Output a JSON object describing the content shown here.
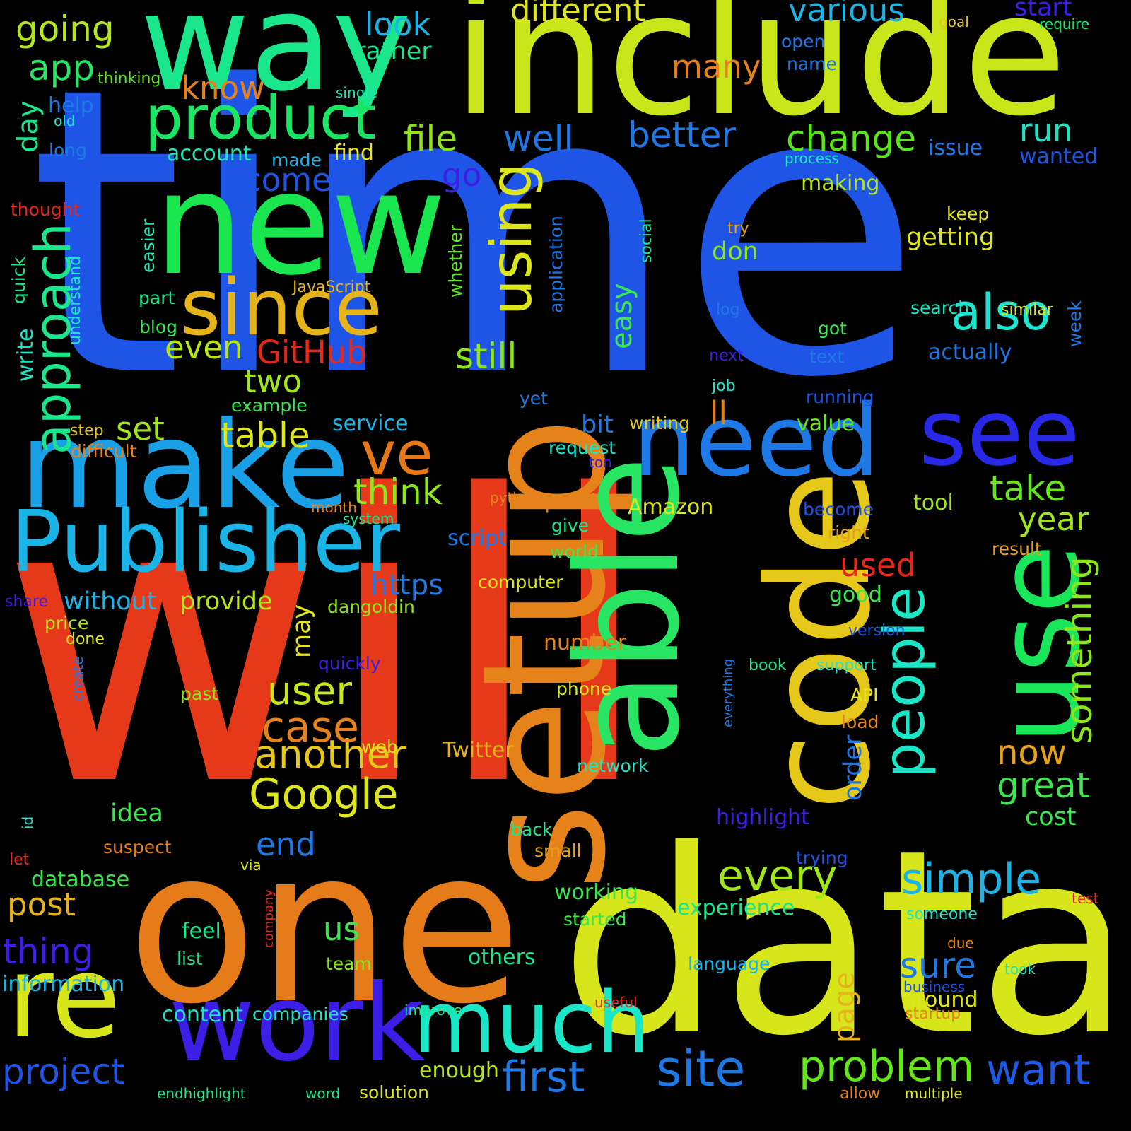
{
  "words": [
    {
      "text": "time",
      "color": "#1e55e6",
      "rot": false
    },
    {
      "text": "will",
      "color": "#e6391a",
      "rot": false
    },
    {
      "text": "one",
      "color": "#e67b1a",
      "rot": false
    },
    {
      "text": "data",
      "color": "#d6e61a",
      "rot": false
    },
    {
      "text": "include",
      "color": "#c8e61a",
      "rot": false
    },
    {
      "text": "way",
      "color": "#1ae68c",
      "rot": false
    },
    {
      "text": "new",
      "color": "#1ae650",
      "rot": false
    },
    {
      "text": "make",
      "color": "#1aa0e6",
      "rot": false
    },
    {
      "text": "Publisher",
      "color": "#1ab4e6",
      "rot": false
    },
    {
      "text": "setup",
      "color": "#e6821a",
      "rot": true
    },
    {
      "text": "able",
      "color": "#28e664",
      "rot": true
    },
    {
      "text": "code",
      "color": "#e6c81a",
      "rot": true
    },
    {
      "text": "use",
      "color": "#1ae65a",
      "rot": true
    },
    {
      "text": "need",
      "color": "#1e78e6",
      "rot": false
    },
    {
      "text": "see",
      "color": "#2828e6",
      "rot": false
    },
    {
      "text": "re",
      "color": "#d6e61a",
      "rot": false
    },
    {
      "text": "work",
      "color": "#3c1ee6",
      "rot": false
    },
    {
      "text": "much",
      "color": "#1ae6c8",
      "rot": false
    },
    {
      "text": "since",
      "color": "#e6b41a",
      "rot": false
    },
    {
      "text": "product",
      "color": "#1ae664",
      "rot": false
    },
    {
      "text": "ve",
      "color": "#e6781a",
      "rot": false
    },
    {
      "text": "using",
      "color": "#dce61a",
      "rot": true
    },
    {
      "text": "people",
      "color": "#1ae6c8",
      "rot": true
    },
    {
      "text": "approach",
      "color": "#1ae68c",
      "rot": true
    },
    {
      "text": "also",
      "color": "#1ae6d2",
      "rot": false
    },
    {
      "text": "site",
      "color": "#1e78e6",
      "rot": false
    },
    {
      "text": "first",
      "color": "#1e78e6",
      "rot": false
    },
    {
      "text": "problem",
      "color": "#64e61a",
      "rot": false
    },
    {
      "text": "want",
      "color": "#1e5ae6",
      "rot": false
    },
    {
      "text": "simple",
      "color": "#1ab4e6",
      "rot": false
    },
    {
      "text": "every",
      "color": "#a0e61a",
      "rot": false
    },
    {
      "text": "another",
      "color": "#e6c81a",
      "rot": false
    },
    {
      "text": "Google",
      "color": "#dce61a",
      "rot": false
    },
    {
      "text": "case",
      "color": "#e6821a",
      "rot": false
    },
    {
      "text": "user",
      "color": "#c8e61a",
      "rot": false
    },
    {
      "text": "something",
      "color": "#8ce61a",
      "rot": true
    },
    {
      "text": "great",
      "color": "#3ce650",
      "rot": false
    },
    {
      "text": "now",
      "color": "#e6a01a",
      "rot": false
    },
    {
      "text": "take",
      "color": "#64e61a",
      "rot": false
    },
    {
      "text": "year",
      "color": "#a0e61a",
      "rot": false
    },
    {
      "text": "different",
      "color": "#dce61a",
      "rot": false
    },
    {
      "text": "various",
      "color": "#1ab4e6",
      "rot": false
    },
    {
      "text": "start",
      "color": "#3c1ee6",
      "rot": false
    },
    {
      "text": "goal",
      "color": "#e6c81a",
      "rot": false
    },
    {
      "text": "require",
      "color": "#1ae664",
      "rot": false
    },
    {
      "text": "open",
      "color": "#1e78e6",
      "rot": false
    },
    {
      "text": "name",
      "color": "#1e78e6",
      "rot": false
    },
    {
      "text": "look",
      "color": "#1ab4e6",
      "rot": false
    },
    {
      "text": "rather",
      "color": "#1ae68c",
      "rot": false
    },
    {
      "text": "going",
      "color": "#b4e61a",
      "rot": false
    },
    {
      "text": "app",
      "color": "#28e664",
      "rot": false
    },
    {
      "text": "thinking",
      "color": "#5ae61a",
      "rot": false
    },
    {
      "text": "single",
      "color": "#1ae6b4",
      "rot": false
    },
    {
      "text": "know",
      "color": "#e6821a",
      "rot": false
    },
    {
      "text": "many",
      "color": "#e6821a",
      "rot": false
    },
    {
      "text": "help",
      "color": "#1e78e6",
      "rot": false
    },
    {
      "text": "old",
      "color": "#1ae6c8",
      "rot": false
    },
    {
      "text": "day",
      "color": "#1ae68c",
      "rot": true
    },
    {
      "text": "long",
      "color": "#1e78e6",
      "rot": false
    },
    {
      "text": "account",
      "color": "#1ae6b4",
      "rot": false
    },
    {
      "text": "made",
      "color": "#1ab4e6",
      "rot": false
    },
    {
      "text": "find",
      "color": "#e6e61a",
      "rot": false
    },
    {
      "text": "file",
      "color": "#8ce61a",
      "rot": false
    },
    {
      "text": "well",
      "color": "#1e78e6",
      "rot": false
    },
    {
      "text": "better",
      "color": "#1e78e6",
      "rot": false
    },
    {
      "text": "change",
      "color": "#5ae61a",
      "rot": false
    },
    {
      "text": "run",
      "color": "#1ae6c8",
      "rot": false
    },
    {
      "text": "issue",
      "color": "#1e78e6",
      "rot": false
    },
    {
      "text": "wanted",
      "color": "#1e55e6",
      "rot": false
    },
    {
      "text": "process",
      "color": "#1ae6c8",
      "rot": false
    },
    {
      "text": "come",
      "color": "#1e55e6",
      "rot": false
    },
    {
      "text": "go",
      "color": "#3c1ee6",
      "rot": false
    },
    {
      "text": "making",
      "color": "#b4e61a",
      "rot": false
    },
    {
      "text": "thought",
      "color": "#e6281a",
      "rot": false
    },
    {
      "text": "keep",
      "color": "#e6e61a",
      "rot": false
    },
    {
      "text": "try",
      "color": "#e6a01a",
      "rot": false
    },
    {
      "text": "getting",
      "color": "#dce61a",
      "rot": false
    },
    {
      "text": "social",
      "color": "#1ae68c",
      "rot": true
    },
    {
      "text": "application",
      "color": "#1e78e6",
      "rot": true
    },
    {
      "text": "whether",
      "color": "#5ae61a",
      "rot": true
    },
    {
      "text": "easier",
      "color": "#1ae6b4",
      "rot": true
    },
    {
      "text": "don",
      "color": "#8ce61a",
      "rot": false
    },
    {
      "text": "quick",
      "color": "#1ae68c",
      "rot": true
    },
    {
      "text": "understand",
      "color": "#1ae6c8",
      "rot": true
    },
    {
      "text": "JavaScript",
      "color": "#e6b41a",
      "rot": false
    },
    {
      "text": "easy",
      "color": "#3ce650",
      "rot": true
    },
    {
      "text": "part",
      "color": "#1ae68c",
      "rot": false
    },
    {
      "text": "log",
      "color": "#1e78e6",
      "rot": false
    },
    {
      "text": "search",
      "color": "#1ae6c8",
      "rot": false
    },
    {
      "text": "similar",
      "color": "#dce61a",
      "rot": false
    },
    {
      "text": "week",
      "color": "#1e78e6",
      "rot": true
    },
    {
      "text": "blog",
      "color": "#3ce650",
      "rot": false
    },
    {
      "text": "even",
      "color": "#b4e61a",
      "rot": false
    },
    {
      "text": "GitHub",
      "color": "#e6281a",
      "rot": false
    },
    {
      "text": "still",
      "color": "#8ce61a",
      "rot": false
    },
    {
      "text": "got",
      "color": "#3ce650",
      "rot": false
    },
    {
      "text": "text",
      "color": "#1e78e6",
      "rot": false
    },
    {
      "text": "actually",
      "color": "#1e78e6",
      "rot": false
    },
    {
      "text": "next",
      "color": "#3c1ee6",
      "rot": false
    },
    {
      "text": "write",
      "color": "#1ae6c8",
      "rot": true
    },
    {
      "text": "two",
      "color": "#a0e61a",
      "rot": false
    },
    {
      "text": "job",
      "color": "#1ae6c8",
      "rot": false
    },
    {
      "text": "yet",
      "color": "#1e78e6",
      "rot": false
    },
    {
      "text": "running",
      "color": "#1e55e6",
      "rot": false
    },
    {
      "text": "example",
      "color": "#3ce650",
      "rot": false
    },
    {
      "text": "ll",
      "color": "#e6821a",
      "rot": false
    },
    {
      "text": "step",
      "color": "#e6c81a",
      "rot": false
    },
    {
      "text": "set",
      "color": "#a0e61a",
      "rot": false
    },
    {
      "text": "table",
      "color": "#dce61a",
      "rot": false
    },
    {
      "text": "service",
      "color": "#1ab4e6",
      "rot": false
    },
    {
      "text": "bit",
      "color": "#1e78e6",
      "rot": false
    },
    {
      "text": "writing",
      "color": "#e6c81a",
      "rot": false
    },
    {
      "text": "value",
      "color": "#64e61a",
      "rot": false
    },
    {
      "text": "difficult",
      "color": "#e6821a",
      "rot": false
    },
    {
      "text": "request",
      "color": "#1ae6c8",
      "rot": false
    },
    {
      "text": "ton",
      "color": "#3c1ee6",
      "rot": false
    },
    {
      "text": "think",
      "color": "#8ce61a",
      "rot": false
    },
    {
      "text": "month",
      "color": "#e6821a",
      "rot": false
    },
    {
      "text": "python",
      "color": "#e6821a",
      "rot": false
    },
    {
      "text": "point",
      "color": "#e6821a",
      "rot": false
    },
    {
      "text": "system",
      "color": "#1ae68c",
      "rot": false
    },
    {
      "text": "Amazon",
      "color": "#dce61a",
      "rot": false
    },
    {
      "text": "become",
      "color": "#1e55e6",
      "rot": false
    },
    {
      "text": "tool",
      "color": "#a0e61a",
      "rot": false
    },
    {
      "text": "give",
      "color": "#1ae68c",
      "rot": false
    },
    {
      "text": "right",
      "color": "#e6a01a",
      "rot": false
    },
    {
      "text": "script",
      "color": "#1e78e6",
      "rot": false
    },
    {
      "text": "world",
      "color": "#3ce650",
      "rot": false
    },
    {
      "text": "result",
      "color": "#e6a01a",
      "rot": false
    },
    {
      "text": "used",
      "color": "#e6281a",
      "rot": false
    },
    {
      "text": "https",
      "color": "#1e78e6",
      "rot": false
    },
    {
      "text": "computer",
      "color": "#dce61a",
      "rot": false
    },
    {
      "text": "without",
      "color": "#1ab4e6",
      "rot": false
    },
    {
      "text": "provide",
      "color": "#b4e61a",
      "rot": false
    },
    {
      "text": "share",
      "color": "#3c1ee6",
      "rot": false
    },
    {
      "text": "good",
      "color": "#3ce650",
      "rot": false
    },
    {
      "text": "dangoldin",
      "color": "#8ce61a",
      "rot": false
    },
    {
      "text": "may",
      "color": "#e6e61a",
      "rot": true
    },
    {
      "text": "price",
      "color": "#b4e61a",
      "rot": false
    },
    {
      "text": "done",
      "color": "#dce61a",
      "rot": false
    },
    {
      "text": "version",
      "color": "#1e55e6",
      "rot": false
    },
    {
      "text": "number",
      "color": "#e6821a",
      "rot": false
    },
    {
      "text": "quickly",
      "color": "#3c1ee6",
      "rot": false
    },
    {
      "text": "book",
      "color": "#1ae68c",
      "rot": false
    },
    {
      "text": "support",
      "color": "#1ae6c8",
      "rot": false
    },
    {
      "text": "create",
      "color": "#1e78e6",
      "rot": true
    },
    {
      "text": "everything",
      "color": "#1e78e6",
      "rot": true
    },
    {
      "text": "phone",
      "color": "#dce61a",
      "rot": false
    },
    {
      "text": "past",
      "color": "#8ce61a",
      "rot": false
    },
    {
      "text": "API",
      "color": "#e6e61a",
      "rot": false
    },
    {
      "text": "load",
      "color": "#e6821a",
      "rot": false
    },
    {
      "text": "order",
      "color": "#1e78e6",
      "rot": true
    },
    {
      "text": "web",
      "color": "#dce61a",
      "rot": false
    },
    {
      "text": "Twitter",
      "color": "#e6b41a",
      "rot": false
    },
    {
      "text": "network",
      "color": "#1ae6c8",
      "rot": false
    },
    {
      "text": "idea",
      "color": "#3ce650",
      "rot": false
    },
    {
      "text": "highlight",
      "color": "#3c1ee6",
      "rot": false
    },
    {
      "text": "cost",
      "color": "#3ce650",
      "rot": false
    },
    {
      "text": "id",
      "color": "#1ae6c8",
      "rot": true
    },
    {
      "text": "back",
      "color": "#1ae68c",
      "rot": false
    },
    {
      "text": "suspect",
      "color": "#e6821a",
      "rot": false
    },
    {
      "text": "end",
      "color": "#1e78e6",
      "rot": false
    },
    {
      "text": "small",
      "color": "#e6a01a",
      "rot": false
    },
    {
      "text": "let",
      "color": "#e6281a",
      "rot": false
    },
    {
      "text": "via",
      "color": "#dce61a",
      "rot": false
    },
    {
      "text": "trying",
      "color": "#1e55e6",
      "rot": false
    },
    {
      "text": "database",
      "color": "#3ce650",
      "rot": false
    },
    {
      "text": "working",
      "color": "#3ce650",
      "rot": false
    },
    {
      "text": "experience",
      "color": "#1ae68c",
      "rot": false
    },
    {
      "text": "test",
      "color": "#e6281a",
      "rot": false
    },
    {
      "text": "post",
      "color": "#e6b41a",
      "rot": false
    },
    {
      "text": "company",
      "color": "#e6281a",
      "rot": true
    },
    {
      "text": "started",
      "color": "#3ce650",
      "rot": false
    },
    {
      "text": "someone",
      "color": "#1ae6c8",
      "rot": false
    },
    {
      "text": "thing",
      "color": "#3c1ee6",
      "rot": false
    },
    {
      "text": "feel",
      "color": "#1ae68c",
      "rot": false
    },
    {
      "text": "us",
      "color": "#3ce650",
      "rot": false
    },
    {
      "text": "due",
      "color": "#e6821a",
      "rot": false
    },
    {
      "text": "list",
      "color": "#1ae68c",
      "rot": false
    },
    {
      "text": "team",
      "color": "#8ce61a",
      "rot": false
    },
    {
      "text": "others",
      "color": "#1ae68c",
      "rot": false
    },
    {
      "text": "language",
      "color": "#1ab4e6",
      "rot": false
    },
    {
      "text": "sure",
      "color": "#1e78e6",
      "rot": false
    },
    {
      "text": "took",
      "color": "#1ae6c8",
      "rot": false
    },
    {
      "text": "information",
      "color": "#1ab4e6",
      "rot": false
    },
    {
      "text": "page",
      "color": "#e6b41a",
      "rot": true
    },
    {
      "text": "business",
      "color": "#1e55e6",
      "rot": false
    },
    {
      "text": "around",
      "color": "#dce61a",
      "rot": false
    },
    {
      "text": "useful",
      "color": "#e6281a",
      "rot": false
    },
    {
      "text": "improve",
      "color": "#1ae68c",
      "rot": false
    },
    {
      "text": "startup",
      "color": "#e6821a",
      "rot": false
    },
    {
      "text": "content",
      "color": "#1ae6c8",
      "rot": false
    },
    {
      "text": "companies",
      "color": "#1ae6c8",
      "rot": false
    },
    {
      "text": "project",
      "color": "#1e55e6",
      "rot": false
    },
    {
      "text": "enough",
      "color": "#b4e61a",
      "rot": false
    },
    {
      "text": "endhighlight",
      "color": "#1ae68c",
      "rot": false
    },
    {
      "text": "word",
      "color": "#1ae68c",
      "rot": false
    },
    {
      "text": "solution",
      "color": "#dce61a",
      "rot": false
    },
    {
      "text": "allow",
      "color": "#e6821a",
      "rot": false
    },
    {
      "text": "multiple",
      "color": "#dce61a",
      "rot": false
    }
  ]
}
